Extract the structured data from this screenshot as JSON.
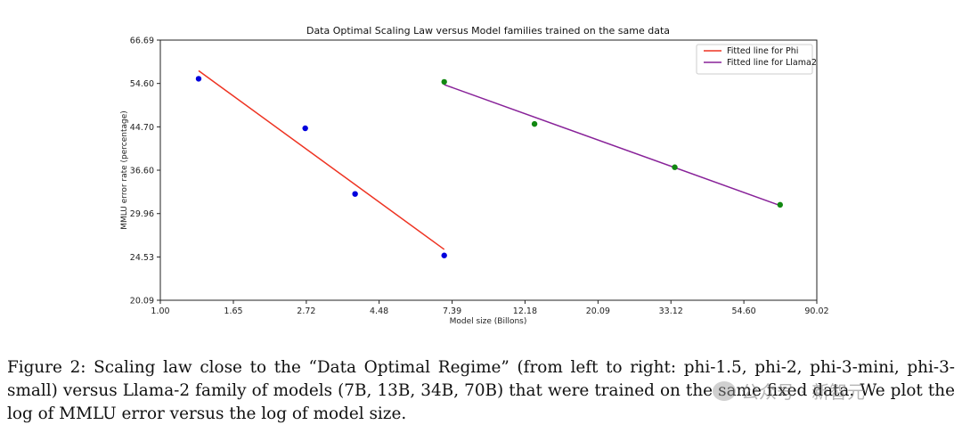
{
  "chart_data": {
    "type": "scatter",
    "title": "Data Optimal Scaling Law versus Model families trained on the same data",
    "xlabel": "Model size (Billons)",
    "ylabel": "MMLU error rate (percentage)",
    "x_scale": "log",
    "y_scale": "log",
    "xlim": [
      1.0,
      90.02
    ],
    "ylim": [
      20.09,
      66.69
    ],
    "x_ticks": [
      "1.00",
      "1.65",
      "2.72",
      "4.48",
      "7.39",
      "12.18",
      "20.09",
      "33.12",
      "54.60",
      "90.02"
    ],
    "y_ticks": [
      "20.09",
      "24.53",
      "29.96",
      "36.60",
      "44.70",
      "54.60",
      "66.69"
    ],
    "legend_position": "top-right",
    "series": [
      {
        "name": "Phi",
        "point_color": "#0000dd",
        "points": [
          {
            "x": 1.3,
            "y": 55.8
          },
          {
            "x": 2.7,
            "y": 44.4
          },
          {
            "x": 3.8,
            "y": 32.8
          },
          {
            "x": 7.0,
            "y": 24.7
          }
        ],
        "fit_line": {
          "name": "Fitted line for Phi",
          "color": "#ee3322",
          "start": {
            "x": 1.3,
            "y": 57.9
          },
          "end": {
            "x": 7.0,
            "y": 25.4
          }
        }
      },
      {
        "name": "Llama2",
        "point_color": "#118811",
        "points": [
          {
            "x": 7.0,
            "y": 55.0
          },
          {
            "x": 13.0,
            "y": 45.3
          },
          {
            "x": 34.0,
            "y": 37.1
          },
          {
            "x": 70.0,
            "y": 31.2
          }
        ],
        "fit_line": {
          "name": "Fitted line for Llama2",
          "color": "#882299",
          "start": {
            "x": 7.0,
            "y": 54.3
          },
          "end": {
            "x": 70.0,
            "y": 31.1
          }
        }
      }
    ]
  },
  "caption": {
    "text": "Figure 2: Scaling law close to the “Data Optimal Regime” (from left to right: phi-1.5, phi-2, phi-3-mini, phi-3-small) versus Llama-2 family of models (7B, 13B, 34B, 70B) that were trained on the same fixed data. We plot the log of MMLU error versus the log of model size."
  },
  "watermark": {
    "text": "公众号 · 新智元"
  }
}
